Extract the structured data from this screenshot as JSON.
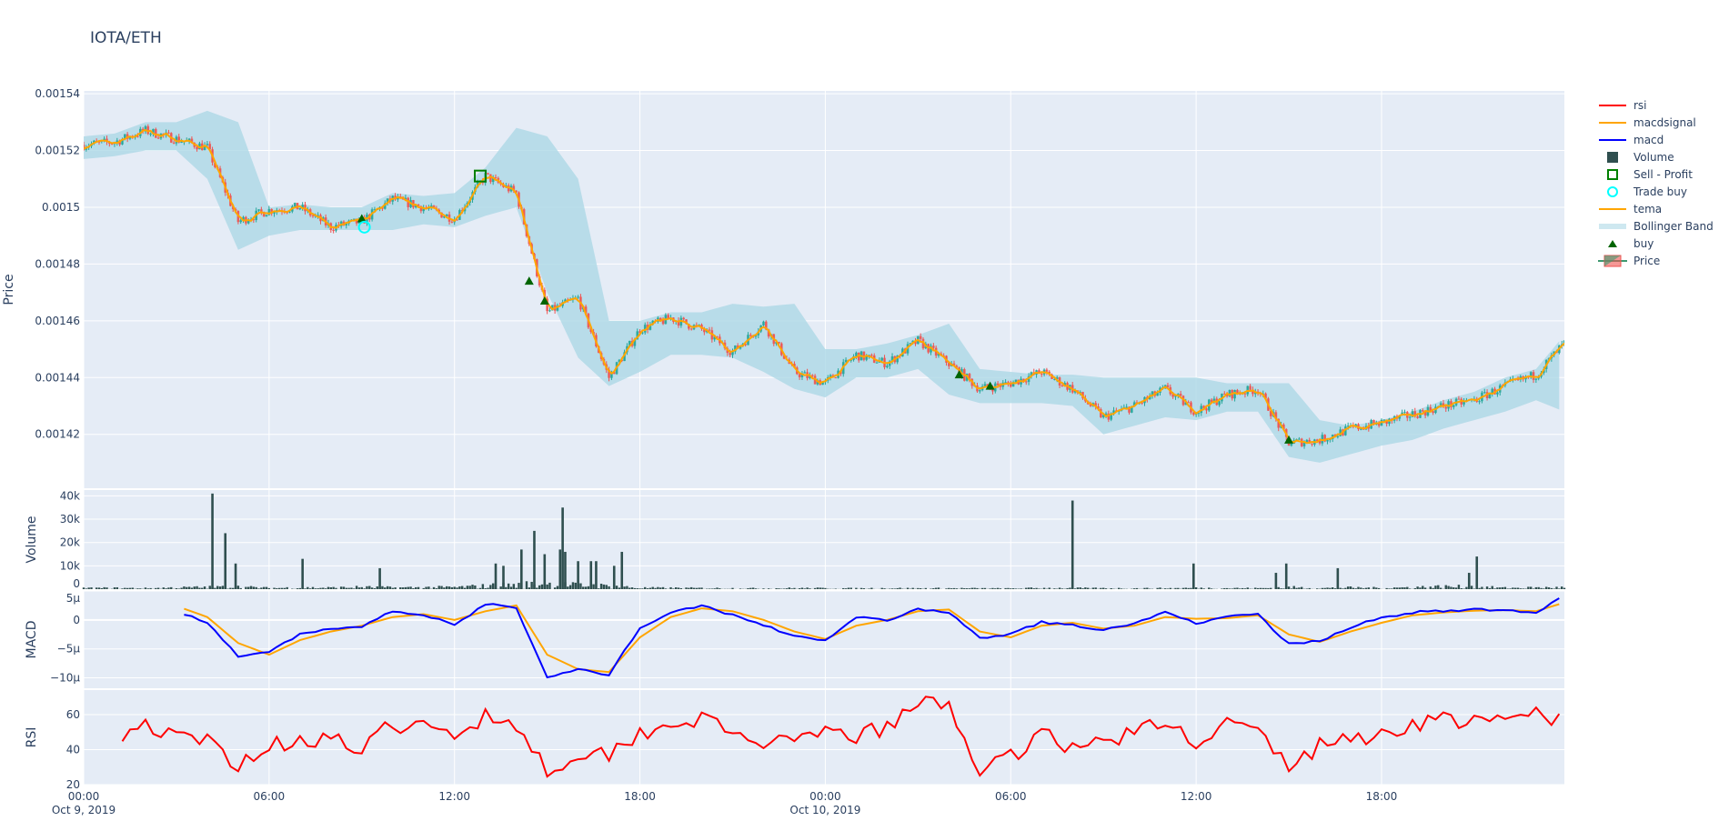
{
  "title": "IOTA/ETH",
  "legend": [
    {
      "label": "rsi",
      "symbol": "line",
      "color": "#ff0000"
    },
    {
      "label": "macdsignal",
      "symbol": "line",
      "color": "#ffa500"
    },
    {
      "label": "macd",
      "symbol": "line",
      "color": "#0000ff"
    },
    {
      "label": "Volume",
      "symbol": "square-filled",
      "color": "#2f4f4f"
    },
    {
      "label": "Sell - Profit",
      "symbol": "square-open",
      "color": "#008000"
    },
    {
      "label": "Trade buy",
      "symbol": "circle-open",
      "color": "#00ffff"
    },
    {
      "label": "tema",
      "symbol": "line",
      "color": "#ffa500"
    },
    {
      "label": "Bollinger Band",
      "symbol": "band",
      "color": "#add8e6"
    },
    {
      "label": "buy",
      "symbol": "triangle-up",
      "color": "#006400"
    },
    {
      "label": "Price",
      "symbol": "candle",
      "color": "#26a69a"
    }
  ],
  "chart_data": {
    "type": "candlestick-multi-panel",
    "x_axis": {
      "range": [
        "2019-10-09 00:00",
        "2019-10-10 23:55"
      ],
      "ticks": [
        {
          "label": "00:00",
          "sub": "Oct 9, 2019",
          "t": 0
        },
        {
          "label": "06:00",
          "sub": "",
          "t": 6
        },
        {
          "label": "12:00",
          "sub": "",
          "t": 12
        },
        {
          "label": "18:00",
          "sub": "",
          "t": 18
        },
        {
          "label": "00:00",
          "sub": "Oct 10, 2019",
          "t": 24
        },
        {
          "label": "06:00",
          "sub": "",
          "t": 30
        },
        {
          "label": "12:00",
          "sub": "",
          "t": 36
        },
        {
          "label": "18:00",
          "sub": "",
          "t": 42
        }
      ]
    },
    "time": [
      "2019-10-09 00:00",
      "2019-10-09 01:00",
      "2019-10-09 02:00",
      "2019-10-09 03:00",
      "2019-10-09 04:00",
      "2019-10-09 05:00",
      "2019-10-09 06:00",
      "2019-10-09 07:00",
      "2019-10-09 08:00",
      "2019-10-09 09:00",
      "2019-10-09 10:00",
      "2019-10-09 11:00",
      "2019-10-09 12:00",
      "2019-10-09 13:00",
      "2019-10-09 14:00",
      "2019-10-09 15:00",
      "2019-10-09 16:00",
      "2019-10-09 17:00",
      "2019-10-09 18:00",
      "2019-10-09 19:00",
      "2019-10-09 20:00",
      "2019-10-09 21:00",
      "2019-10-09 22:00",
      "2019-10-09 23:00",
      "2019-10-10 00:00",
      "2019-10-10 01:00",
      "2019-10-10 02:00",
      "2019-10-10 03:00",
      "2019-10-10 04:00",
      "2019-10-10 05:00",
      "2019-10-10 06:00",
      "2019-10-10 07:00",
      "2019-10-10 08:00",
      "2019-10-10 09:00",
      "2019-10-10 10:00",
      "2019-10-10 11:00",
      "2019-10-10 12:00",
      "2019-10-10 13:00",
      "2019-10-10 14:00",
      "2019-10-10 15:00",
      "2019-10-10 16:00",
      "2019-10-10 17:00",
      "2019-10-10 18:00",
      "2019-10-10 19:00",
      "2019-10-10 20:00",
      "2019-10-10 21:00",
      "2019-10-10 22:00",
      "2019-10-10 23:00",
      "2019-10-10 23:55"
    ],
    "panels": [
      {
        "name": "price",
        "ylabel": "Price",
        "ylim": [
          0.001401,
          0.001541
        ],
        "ticks": [
          {
            "v": 0.00142,
            "label": "0.00142"
          },
          {
            "v": 0.00144,
            "label": "0.00144"
          },
          {
            "v": 0.00146,
            "label": "0.00146"
          },
          {
            "v": 0.00148,
            "label": "0.00148"
          },
          {
            "v": 0.0015,
            "label": "0.0015"
          },
          {
            "v": 0.00152,
            "label": "0.00152"
          },
          {
            "v": 0.00154,
            "label": "0.00154"
          }
        ],
        "close": [
          0.001522,
          0.001523,
          0.001527,
          0.001524,
          0.001521,
          0.001495,
          0.001499,
          0.0015,
          0.001493,
          0.001495,
          0.001503,
          0.0015,
          0.001496,
          0.001511,
          0.001505,
          0.001463,
          0.001468,
          0.00144,
          0.001457,
          0.001461,
          0.001457,
          0.001449,
          0.001459,
          0.001442,
          0.001438,
          0.001448,
          0.001445,
          0.001453,
          0.001445,
          0.001436,
          0.001438,
          0.001442,
          0.001436,
          0.001426,
          0.00143,
          0.001436,
          0.001428,
          0.001434,
          0.001436,
          0.001417,
          0.001418,
          0.001422,
          0.001424,
          0.001427,
          0.00143,
          0.001432,
          0.001437,
          0.001441,
          0.001452
        ],
        "bb_upper": [
          0.001525,
          0.001526,
          0.00153,
          0.00153,
          0.001534,
          0.00153,
          0.0015,
          0.001501,
          0.0015,
          0.0015,
          0.001505,
          0.001504,
          0.001505,
          0.001514,
          0.001528,
          0.001525,
          0.00151,
          0.00146,
          0.00146,
          0.001463,
          0.001463,
          0.001466,
          0.001465,
          0.001466,
          0.00145,
          0.00145,
          0.001452,
          0.001455,
          0.001459,
          0.001443,
          0.001442,
          0.001441,
          0.001441,
          0.00144,
          0.00144,
          0.00144,
          0.00144,
          0.001438,
          0.001438,
          0.001438,
          0.001425,
          0.001423,
          0.001425,
          0.001428,
          0.001432,
          0.001435,
          0.00144,
          0.001443,
          0.001455
        ],
        "bb_lower": [
          0.001517,
          0.001518,
          0.00152,
          0.00152,
          0.00151,
          0.001485,
          0.00149,
          0.001492,
          0.001492,
          0.001492,
          0.001492,
          0.001494,
          0.001493,
          0.001497,
          0.0015,
          0.00147,
          0.001447,
          0.001437,
          0.001442,
          0.001448,
          0.001448,
          0.001447,
          0.001442,
          0.001436,
          0.001433,
          0.00144,
          0.00144,
          0.001443,
          0.001434,
          0.001431,
          0.001431,
          0.001431,
          0.00143,
          0.00142,
          0.001423,
          0.001426,
          0.001425,
          0.001428,
          0.001428,
          0.001412,
          0.00141,
          0.001413,
          0.001416,
          0.001418,
          0.001422,
          0.001425,
          0.001428,
          0.001432,
          0.001428
        ],
        "buy_signals": [
          {
            "time": "2019-10-09 09:00",
            "price": 0.001496
          },
          {
            "time": "2019-10-09 14:25",
            "price": 0.001474
          },
          {
            "time": "2019-10-09 14:55",
            "price": 0.001467
          },
          {
            "time": "2019-10-10 04:20",
            "price": 0.001441
          },
          {
            "time": "2019-10-10 05:20",
            "price": 0.001437
          },
          {
            "time": "2019-10-10 15:00",
            "price": 0.001418
          }
        ],
        "trade_buys": [
          {
            "time": "2019-10-09 09:05",
            "price": 0.001493
          }
        ],
        "sell_profit": [
          {
            "time": "2019-10-09 12:50",
            "price": 0.001511
          }
        ]
      },
      {
        "name": "volume",
        "ylabel": "Volume",
        "ylim": [
          0,
          42500
        ],
        "ticks": [
          {
            "v": 0,
            "label": "0"
          },
          {
            "v": 10000,
            "label": "10k"
          },
          {
            "v": 20000,
            "label": "20k"
          },
          {
            "v": 30000,
            "label": "30k"
          },
          {
            "v": 40000,
            "label": "40k"
          }
        ],
        "bars": [
          {
            "time": "2019-10-09 04:10",
            "v": 41000
          },
          {
            "time": "2019-10-09 04:35",
            "v": 24000
          },
          {
            "time": "2019-10-09 04:55",
            "v": 11000
          },
          {
            "time": "2019-10-09 07:05",
            "v": 13000
          },
          {
            "time": "2019-10-09 09:35",
            "v": 9000
          },
          {
            "time": "2019-10-09 13:20",
            "v": 11000
          },
          {
            "time": "2019-10-09 13:35",
            "v": 10000
          },
          {
            "time": "2019-10-09 14:10",
            "v": 17000
          },
          {
            "time": "2019-10-09 14:35",
            "v": 25000
          },
          {
            "time": "2019-10-09 14:55",
            "v": 15000
          },
          {
            "time": "2019-10-09 15:25",
            "v": 17000
          },
          {
            "time": "2019-10-09 15:30",
            "v": 35000
          },
          {
            "time": "2019-10-09 15:35",
            "v": 16000
          },
          {
            "time": "2019-10-09 16:00",
            "v": 12000
          },
          {
            "time": "2019-10-09 16:25",
            "v": 12000
          },
          {
            "time": "2019-10-09 16:35",
            "v": 12000
          },
          {
            "time": "2019-10-09 17:10",
            "v": 10000
          },
          {
            "time": "2019-10-09 17:25",
            "v": 16000
          },
          {
            "time": "2019-10-10 08:00",
            "v": 38000
          },
          {
            "time": "2019-10-10 11:55",
            "v": 11000
          },
          {
            "time": "2019-10-10 14:35",
            "v": 7000
          },
          {
            "time": "2019-10-10 14:55",
            "v": 11000
          },
          {
            "time": "2019-10-10 16:35",
            "v": 9000
          },
          {
            "time": "2019-10-10 20:50",
            "v": 7000
          },
          {
            "time": "2019-10-10 21:05",
            "v": 14000
          }
        ],
        "baseline": [
          800,
          900,
          700,
          1200,
          1500,
          1800,
          900,
          1200,
          1100,
          1600,
          1200,
          1400,
          1500,
          2500,
          3500,
          4000,
          3000,
          2500,
          1000,
          900,
          800,
          700,
          600,
          800,
          700,
          600,
          800,
          600,
          700,
          600,
          500,
          900,
          800,
          700,
          600,
          700,
          900,
          800,
          700,
          1500,
          800,
          1200,
          900,
          1500,
          2000,
          1800,
          1000,
          1200,
          1300
        ]
      },
      {
        "name": "macd",
        "ylabel": "MACD",
        "ylim": [
          -1.18e-05,
          5e-06
        ],
        "ticks": [
          {
            "v": -1e-05,
            "label": "−10µ"
          },
          {
            "v": -5e-06,
            "label": "−5µ"
          },
          {
            "v": 0,
            "label": "0"
          },
          {
            "v": 5e-06,
            "label": "5µ"
          }
        ],
        "macd_micro": [
          null,
          null,
          null,
          1.6,
          -0.4,
          -6.4,
          -5.5,
          -2.4,
          -1.5,
          -1.3,
          1.6,
          0.9,
          -0.9,
          2.7,
          2.2,
          -10,
          -8.5,
          -9.5,
          -1.3,
          1.3,
          2.4,
          0.9,
          -0.9,
          -2.7,
          -3.6,
          0.4,
          0,
          1.8,
          1.3,
          -3.1,
          -2.4,
          -0.4,
          -0.9,
          -1.8,
          -0.5,
          1.3,
          -0.5,
          0.5,
          0.9,
          -4.2,
          -3.6,
          -1.3,
          0.4,
          1.3,
          1.6,
          1.8,
          1.6,
          1.3,
          4.2
        ],
        "macdsignal_micro": [
          null,
          null,
          null,
          2.4,
          0.5,
          -4,
          -6,
          -3.5,
          -2,
          -1,
          0.5,
          1,
          0,
          1.5,
          2.5,
          -6,
          -8.5,
          -9,
          -3,
          0.5,
          2,
          1.5,
          0,
          -2,
          -3.3,
          -1,
          0,
          1.5,
          1.8,
          -2,
          -3,
          -1,
          -0.5,
          -1.5,
          -1,
          0.5,
          0.2,
          0.3,
          0.8,
          -2.5,
          -3.8,
          -2,
          -0.5,
          0.8,
          1.3,
          1.6,
          1.7,
          1.5,
          3
        ]
      },
      {
        "name": "rsi",
        "ylabel": "RSI",
        "ylim": [
          20,
          74
        ],
        "ticks": [
          {
            "v": 20,
            "label": "20"
          },
          {
            "v": 40,
            "label": "40"
          },
          {
            "v": 60,
            "label": "60"
          }
        ],
        "rsi": [
          null,
          48,
          55,
          46,
          45,
          32,
          42,
          46,
          47,
          38,
          55,
          52,
          48,
          60,
          55,
          28,
          38,
          38,
          50,
          55,
          58,
          48,
          45,
          42,
          50,
          48,
          52,
          66,
          66,
          28,
          35,
          52,
          40,
          45,
          50,
          55,
          45,
          55,
          50,
          30,
          42,
          47,
          48,
          55,
          58,
          55,
          56,
          62,
          55
        ]
      }
    ]
  }
}
